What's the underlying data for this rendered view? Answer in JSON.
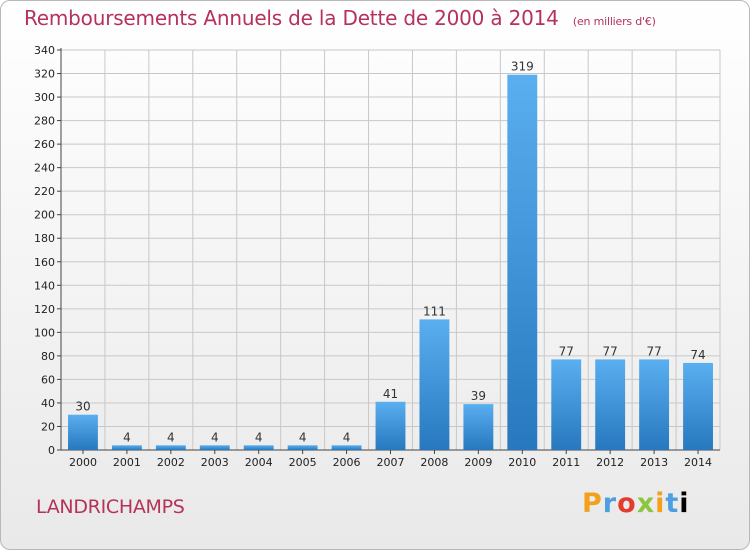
{
  "header": {
    "title": "Remboursements Annuels de la Dette de 2000 à 2014",
    "unit_note": "(en milliers d'€)"
  },
  "commune": "LANDRICHAMPS",
  "logo": {
    "letters": [
      "P",
      "r",
      "o",
      "x",
      "i",
      "t",
      "i"
    ]
  },
  "colors": {
    "title": "#b5325a",
    "bar_top": "#5aaff0",
    "bar_bottom": "#2778be",
    "grid": "#c8c8c8"
  },
  "chart_data": {
    "type": "bar",
    "categories": [
      "2000",
      "2001",
      "2002",
      "2003",
      "2004",
      "2005",
      "2006",
      "2007",
      "2008",
      "2009",
      "2010",
      "2011",
      "2012",
      "2013",
      "2014"
    ],
    "values": [
      30,
      4,
      4,
      4,
      4,
      4,
      4,
      41,
      111,
      39,
      319,
      77,
      77,
      77,
      74
    ],
    "title": "Remboursements Annuels de la Dette de 2000 à 2014",
    "ylabel": "(en milliers d'€)",
    "ylim": [
      0,
      340
    ],
    "ytick_step": 20,
    "grid": true
  }
}
